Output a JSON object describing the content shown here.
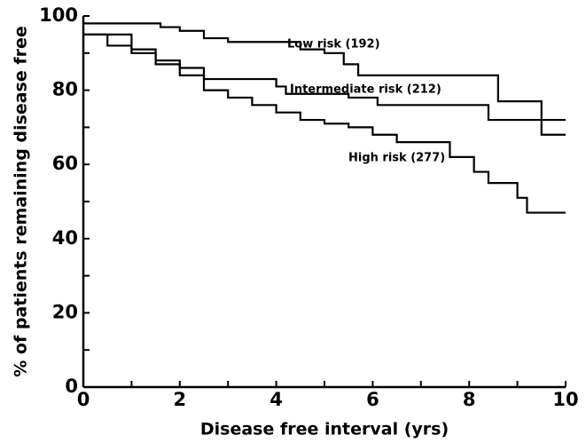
{
  "chart_data": {
    "type": "line",
    "step": true,
    "x_label": "Disease free interval (yrs)",
    "y_label": "% of patients remaining disease free",
    "xlim": [
      0,
      10
    ],
    "xticks": [
      0,
      2,
      4,
      6,
      8,
      10
    ],
    "xminorticks": [
      1,
      3,
      5,
      7,
      9
    ],
    "ylim": [
      0,
      100
    ],
    "yticks": [
      0,
      20,
      40,
      60,
      80,
      100
    ],
    "yminorticks": [
      10,
      30,
      50,
      70,
      90
    ],
    "series": [
      {
        "name": "Low risk (192)",
        "color": "#000000",
        "x": [
          0,
          1.3,
          1.6,
          2,
          2.5,
          3,
          4,
          4.5,
          5,
          5.4,
          5.7,
          8.6,
          9.5,
          10
        ],
        "values": [
          98,
          98,
          97,
          96,
          94,
          93,
          93,
          91,
          90,
          87,
          84,
          77,
          68,
          68
        ]
      },
      {
        "name": "Intermediate risk (212)",
        "color": "#000000",
        "x": [
          0,
          1,
          1.5,
          2,
          2.5,
          4,
          4.2,
          5.5,
          6.1,
          8.4,
          10
        ],
        "values": [
          95,
          91,
          88,
          86,
          83,
          81,
          79,
          78,
          76,
          72,
          72
        ]
      },
      {
        "name": "High risk (277)",
        "color": "#000000",
        "x": [
          0,
          0.5,
          1,
          1.5,
          2,
          2.5,
          3,
          3.5,
          4,
          4.5,
          5,
          5.5,
          6,
          6.5,
          7.6,
          8.1,
          8.4,
          9,
          9.2,
          10
        ],
        "values": [
          95,
          92,
          90,
          87,
          84,
          80,
          78,
          76,
          74,
          72,
          71,
          70,
          68,
          66,
          62,
          58,
          55,
          51,
          47,
          47
        ]
      }
    ]
  }
}
